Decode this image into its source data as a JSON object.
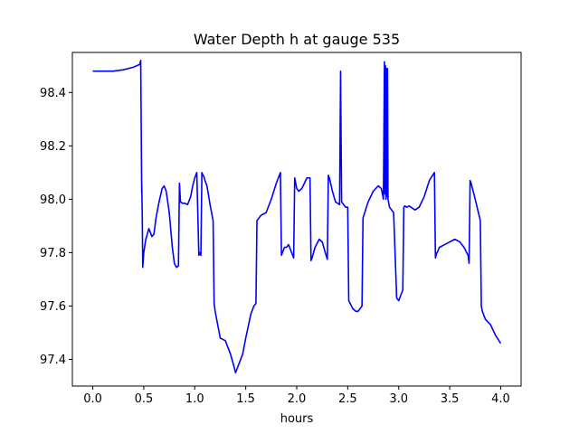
{
  "chart_data": {
    "type": "line",
    "title": "Water Depth h at gauge 535",
    "xlabel": "hours",
    "ylabel": "",
    "xlim": [
      -0.2,
      4.2
    ],
    "ylim": [
      97.3,
      98.55
    ],
    "xticks": [
      0.0,
      0.5,
      1.0,
      1.5,
      2.0,
      2.5,
      3.0,
      3.5,
      4.0
    ],
    "xtick_labels": [
      "0.0",
      "0.5",
      "1.0",
      "1.5",
      "2.0",
      "2.5",
      "3.0",
      "3.5",
      "4.0"
    ],
    "yticks": [
      97.4,
      97.6,
      97.8,
      98.0,
      98.2,
      98.4
    ],
    "ytick_labels": [
      "97.4",
      "97.6",
      "97.8",
      "98.0",
      "98.2",
      "98.4"
    ],
    "grid": false,
    "legend": "none",
    "series": [
      {
        "color": "#0000ff",
        "x": [
          0.0,
          0.2,
          0.3,
          0.4,
          0.46,
          0.47,
          0.48,
          0.48,
          0.485,
          0.49,
          0.5,
          0.52,
          0.55,
          0.58,
          0.6,
          0.62,
          0.65,
          0.68,
          0.7,
          0.72,
          0.75,
          0.78,
          0.8,
          0.82,
          0.84,
          0.85,
          0.86,
          0.88,
          0.9,
          0.93,
          0.96,
          0.98,
          1.0,
          1.02,
          1.04,
          1.05,
          1.06,
          1.07,
          1.08,
          1.09,
          1.1,
          1.12,
          1.15,
          1.18,
          1.19,
          1.2,
          1.25,
          1.3,
          1.35,
          1.38,
          1.4,
          1.43,
          1.47,
          1.5,
          1.55,
          1.58,
          1.6,
          1.61,
          1.65,
          1.7,
          1.75,
          1.8,
          1.84,
          1.85,
          1.86,
          1.88,
          1.9,
          1.92,
          1.94,
          1.95,
          1.97,
          1.98,
          2.0,
          2.02,
          2.05,
          2.1,
          2.13,
          2.14,
          2.15,
          2.18,
          2.22,
          2.25,
          2.28,
          2.3,
          2.31,
          2.32,
          2.35,
          2.38,
          2.42,
          2.43,
          2.44,
          2.46,
          2.48,
          2.5,
          2.51,
          2.55,
          2.58,
          2.6,
          2.62,
          2.64,
          2.65,
          2.7,
          2.75,
          2.8,
          2.83,
          2.85,
          2.86,
          2.865,
          2.87,
          2.875,
          2.88,
          2.885,
          2.89,
          2.895,
          2.9,
          2.91,
          2.95,
          2.98,
          3.0,
          3.02,
          3.04,
          3.05,
          3.06,
          3.08,
          3.1,
          3.12,
          3.14,
          3.16,
          3.18,
          3.2,
          3.25,
          3.3,
          3.35,
          3.36,
          3.37,
          3.4,
          3.45,
          3.5,
          3.55,
          3.6,
          3.64,
          3.68,
          3.69,
          3.7,
          3.71,
          3.75,
          3.8,
          3.81,
          3.82,
          3.85,
          3.9,
          3.95,
          4.0
        ],
        "y": [
          98.48,
          98.48,
          98.485,
          98.495,
          98.505,
          98.52,
          98.025,
          98.06,
          97.95,
          97.745,
          97.8,
          97.85,
          97.89,
          97.86,
          97.87,
          97.93,
          97.99,
          98.04,
          98.05,
          98.03,
          97.95,
          97.82,
          97.76,
          97.745,
          97.75,
          98.06,
          97.99,
          97.985,
          97.985,
          97.98,
          98.01,
          98.05,
          98.08,
          98.1,
          97.79,
          97.8,
          97.79,
          98.1,
          98.09,
          98.085,
          98.07,
          98.05,
          97.98,
          97.92,
          97.61,
          97.58,
          97.48,
          97.47,
          97.42,
          97.38,
          97.35,
          97.38,
          97.42,
          97.48,
          97.57,
          97.6,
          97.61,
          97.92,
          97.94,
          97.95,
          98.0,
          98.06,
          98.1,
          97.79,
          97.8,
          97.82,
          97.82,
          97.83,
          97.81,
          97.8,
          97.78,
          98.08,
          98.04,
          98.03,
          98.04,
          98.08,
          98.08,
          97.77,
          97.78,
          97.82,
          97.85,
          97.84,
          97.8,
          97.775,
          98.09,
          98.08,
          98.03,
          97.99,
          97.98,
          98.48,
          97.99,
          97.98,
          97.97,
          97.97,
          97.62,
          97.59,
          97.58,
          97.58,
          97.59,
          97.6,
          97.93,
          97.99,
          98.03,
          98.05,
          98.04,
          98.0,
          98.515,
          98.02,
          98.5,
          98.0,
          98.49,
          98.01,
          98.49,
          98.0,
          97.99,
          97.97,
          97.95,
          97.63,
          97.62,
          97.64,
          97.66,
          97.97,
          97.975,
          97.97,
          97.975,
          97.97,
          97.965,
          97.96,
          97.965,
          97.97,
          98.01,
          98.07,
          98.1,
          97.78,
          97.795,
          97.82,
          97.83,
          97.84,
          97.85,
          97.84,
          97.82,
          97.79,
          97.76,
          98.07,
          98.06,
          98.0,
          97.92,
          97.6,
          97.58,
          97.55,
          97.53,
          97.49,
          97.46
        ]
      }
    ]
  }
}
